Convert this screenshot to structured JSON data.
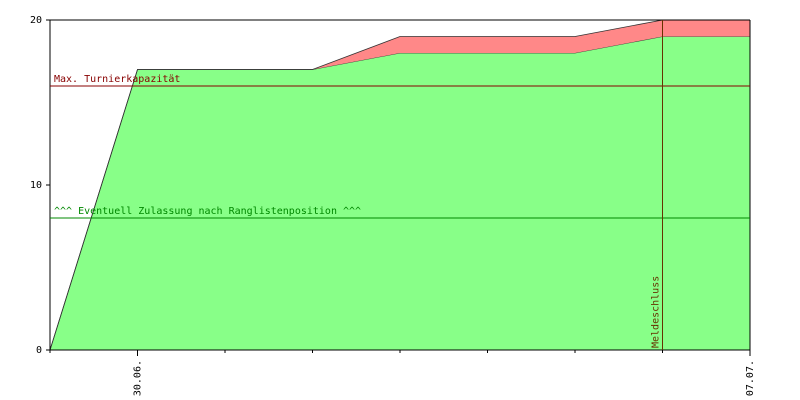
{
  "chart_data": {
    "type": "stacked-area",
    "categories": [
      null,
      "30.06.",
      null,
      null,
      null,
      null,
      null,
      null,
      "07.07."
    ],
    "series": [
      {
        "color": "#88ff88",
        "values": [
          0,
          17,
          17,
          17,
          18,
          18,
          18,
          19,
          19
        ]
      },
      {
        "color": "#ff8888",
        "values": [
          0,
          0,
          0,
          0,
          1,
          1,
          1,
          1,
          1
        ]
      }
    ],
    "ylim": [
      0,
      20
    ],
    "yticks": [
      0,
      10,
      20
    ],
    "hlines": [
      {
        "value": 16,
        "label": "Max. Turnierkapazität",
        "color": "#880000"
      },
      {
        "value": 8,
        "label": "^^^ Eventuell Zulassung nach Ranglistenposition ^^^",
        "color": "#008800"
      }
    ],
    "vlines": [
      {
        "index": 7,
        "label": "Meldeschluss",
        "color": "#663300"
      }
    ]
  }
}
